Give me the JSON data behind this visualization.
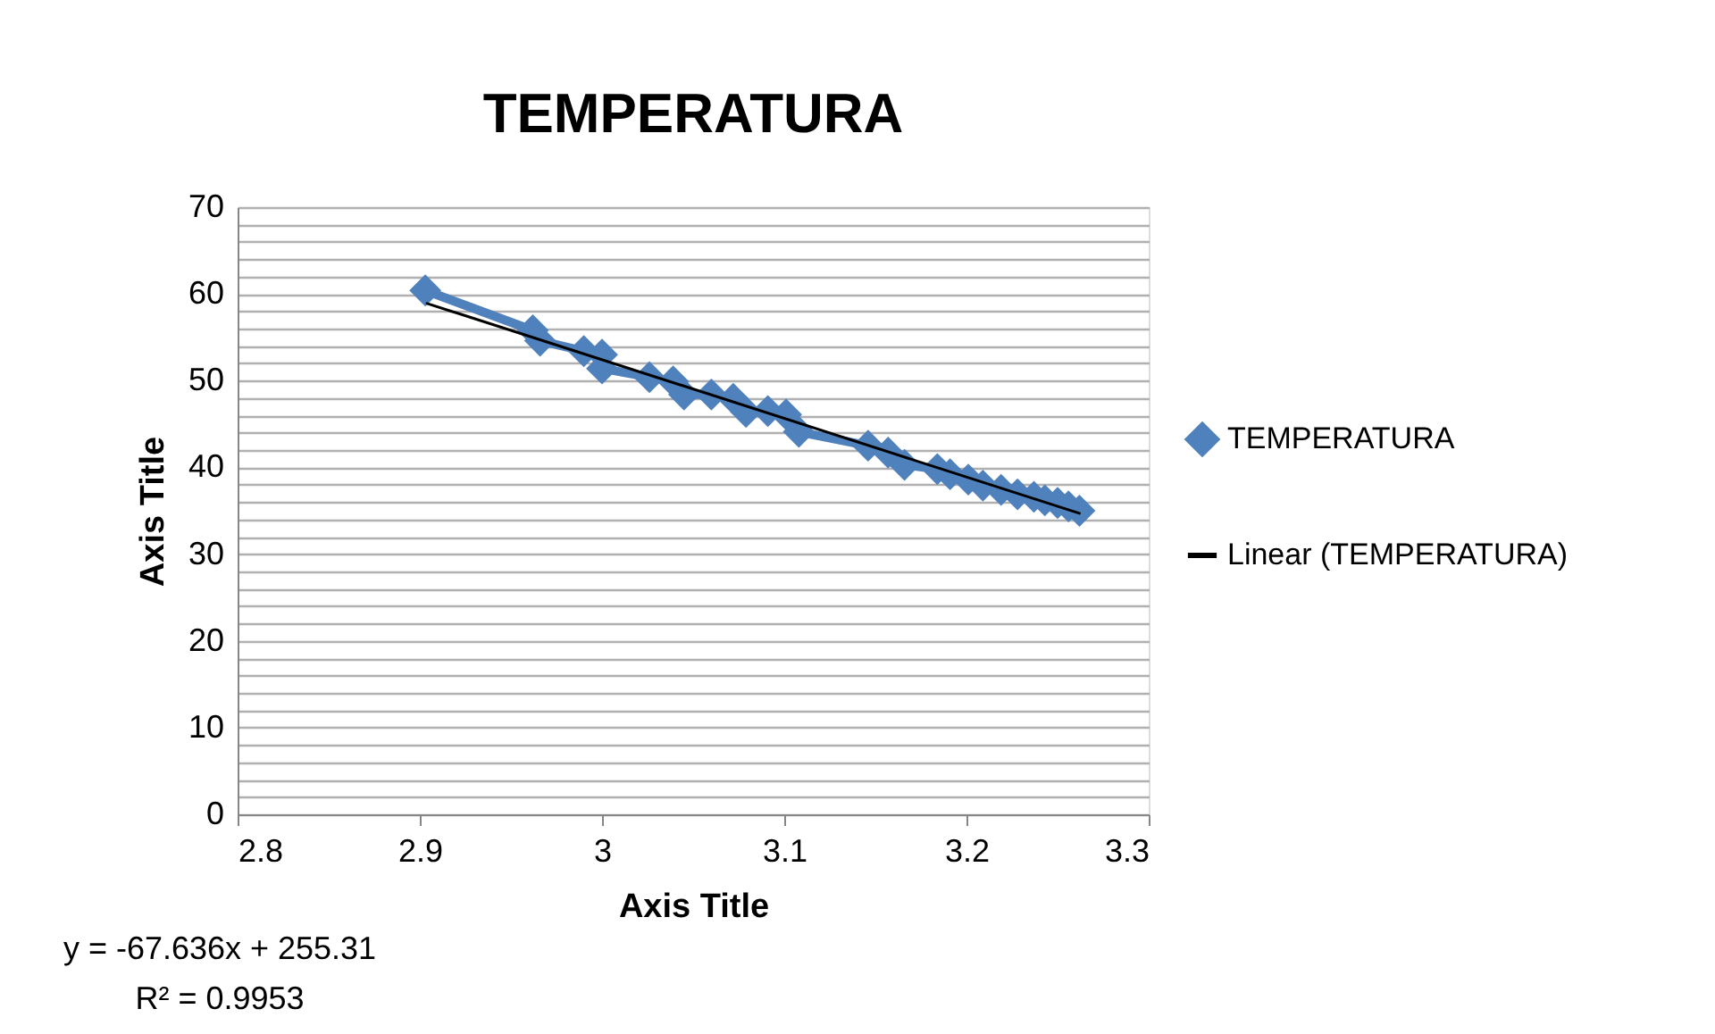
{
  "chart_data": {
    "type": "line",
    "title": "TEMPERATURA",
    "xlabel": "Axis Title",
    "ylabel": "Axis Title",
    "xlim": [
      2.8,
      3.3
    ],
    "xticks": [
      2.8,
      2.9,
      3,
      3.1,
      3.2,
      3.3
    ],
    "ylim": [
      0,
      70
    ],
    "yticks": [
      0,
      {
        "value": 2,
        "label": null
      },
      {
        "value": 4,
        "label": null
      },
      {
        "value": 6,
        "label": null
      },
      {
        "value": 8,
        "label": null
      },
      10,
      {
        "value": 12,
        "label": null
      },
      {
        "value": 14,
        "label": null
      },
      {
        "value": 16,
        "label": null
      },
      {
        "value": 18,
        "label": null
      },
      20,
      {
        "value": 22,
        "label": null
      },
      {
        "value": 24,
        "label": null
      },
      {
        "value": 26,
        "label": null
      },
      {
        "value": 28,
        "label": null
      },
      30,
      {
        "value": 32,
        "label": null
      },
      {
        "value": 34,
        "label": null
      },
      {
        "value": 36,
        "label": null
      },
      {
        "value": 38,
        "label": null
      },
      40,
      {
        "value": 42,
        "label": null
      },
      {
        "value": 44,
        "label": null
      },
      {
        "value": 46,
        "label": null
      },
      {
        "value": 48,
        "label": null
      },
      50,
      {
        "value": 52,
        "label": null
      },
      {
        "value": 54,
        "label": null
      },
      {
        "value": 56,
        "label": null
      },
      {
        "value": 58,
        "label": null
      },
      60,
      {
        "value": 62,
        "label": null
      },
      {
        "value": 64,
        "label": null
      },
      {
        "value": 66,
        "label": null
      },
      {
        "value": 68,
        "label": null
      },
      70
    ],
    "grid": "y",
    "legend": "right",
    "marker": "diamond",
    "line_style": "solid",
    "series": [
      {
        "name": "TEMPERATURA",
        "color": "#4f81bd",
        "x": [
          2.903,
          2.962,
          2.966,
          2.99,
          3.0,
          3.0,
          3.026,
          3.039,
          3.045,
          3.06,
          3.072,
          3.079,
          3.091,
          3.101,
          3.108,
          3.146,
          3.157,
          3.166,
          3.184,
          3.191,
          3.201,
          3.209,
          3.219,
          3.228,
          3.237,
          3.243,
          3.25,
          3.256,
          3.262
        ],
        "values": [
          60.4,
          55.8,
          54.6,
          53.4,
          53.0,
          51.4,
          50.4,
          49.9,
          48.4,
          48.4,
          47.9,
          46.4,
          46.5,
          46.1,
          44.1,
          42.5,
          41.7,
          40.3,
          39.8,
          39.2,
          38.6,
          37.9,
          37.4,
          36.9,
          36.6,
          36.2,
          35.9,
          35.5,
          35.0
        ]
      },
      {
        "name": "Linear (TEMPERATURA)",
        "color": "#000000",
        "type": "line",
        "marker": "none",
        "x": [
          2.904,
          3.262
        ],
        "values": [
          58.9,
          34.7
        ]
      }
    ],
    "annotations": [
      "y = -67.636x + 255.31",
      "R² = 0.9953"
    ]
  }
}
